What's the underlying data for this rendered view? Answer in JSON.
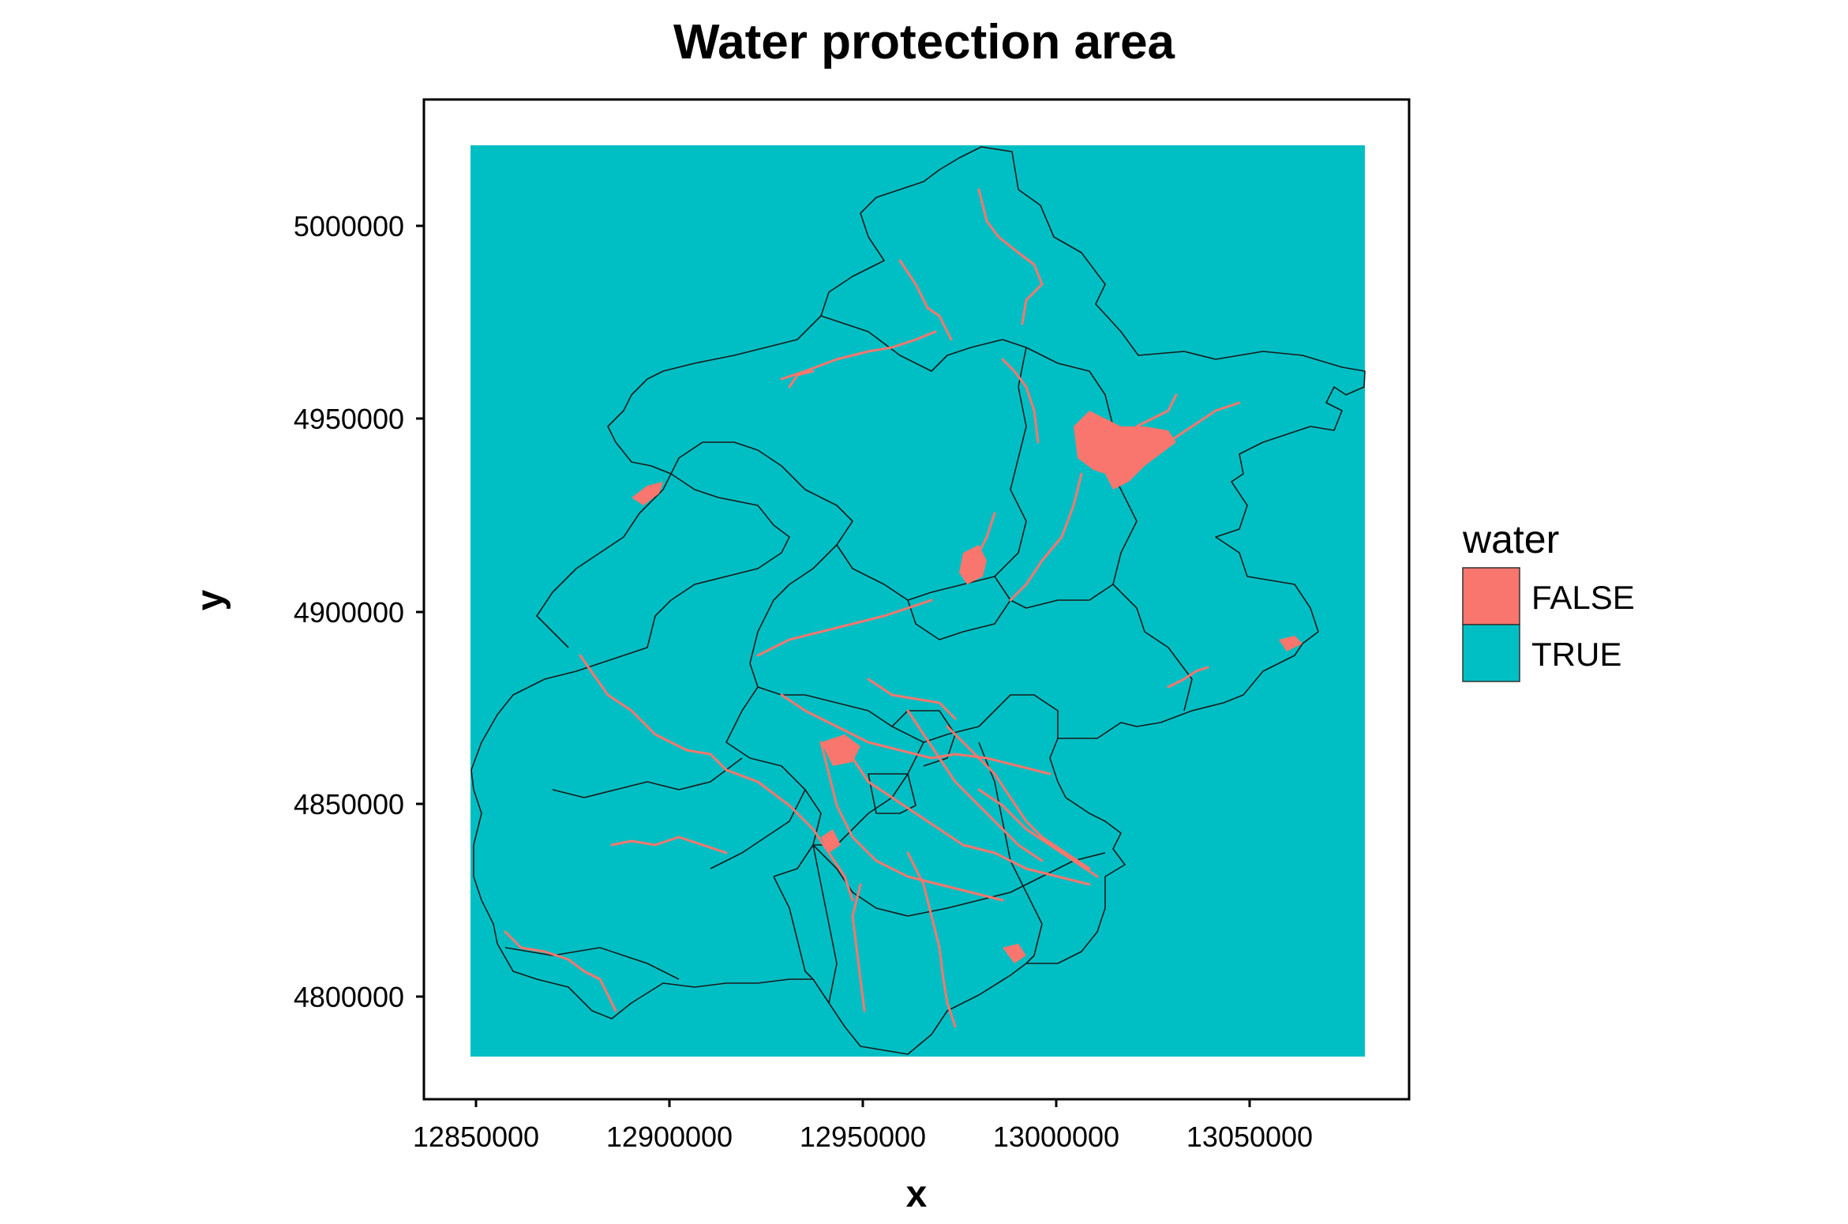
{
  "title": "Water protection area",
  "xlabel": "x",
  "ylabel": "y",
  "x_ticks": [
    "12850000",
    "12900000",
    "12950000",
    "13000000",
    "13050000"
  ],
  "y_ticks": [
    "5000000",
    "4950000",
    "4900000",
    "4850000",
    "4800000"
  ],
  "legend": {
    "title": "water",
    "items": [
      {
        "label": "FALSE",
        "color": "#F8766D"
      },
      {
        "label": "TRUE",
        "color": "#00BFC4"
      }
    ]
  },
  "colors": {
    "true_fill": "#00BFC4",
    "false_fill": "#F8766D",
    "boundary": "#1a1a1a",
    "background": "#ffffff"
  }
}
